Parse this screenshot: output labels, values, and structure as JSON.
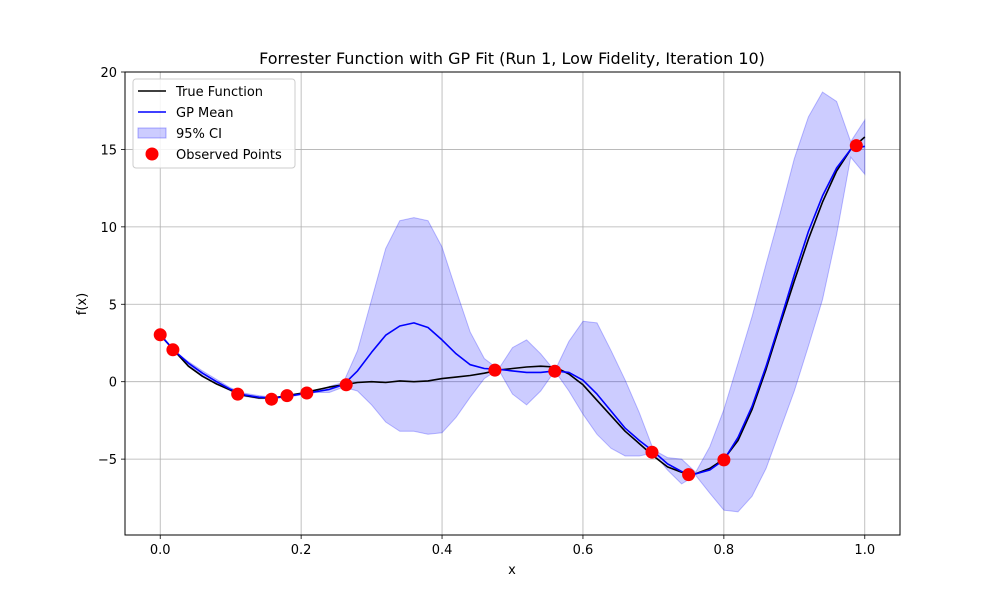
{
  "chart_data": {
    "type": "line",
    "title": "Forrester Function with GP Fit (Run 1, Low Fidelity, Iteration 10)",
    "xlabel": "x",
    "ylabel": "f(x)",
    "xlim": [
      -0.05,
      1.05
    ],
    "ylim": [
      -9.9,
      20
    ],
    "xticks": [
      0.0,
      0.2,
      0.4,
      0.6,
      0.8,
      1.0
    ],
    "xtick_labels": [
      "0.0",
      "0.2",
      "0.4",
      "0.6",
      "0.8",
      "1.0"
    ],
    "yticks": [
      -5,
      0,
      5,
      10,
      15,
      20
    ],
    "ytick_labels": [
      "−5",
      "0",
      "5",
      "10",
      "15",
      "20"
    ],
    "grid": true,
    "legend_position": "top-left",
    "colors": {
      "true_function": "#000000",
      "gp_mean": "#0000ff",
      "ci_fill": "#0000ff",
      "observed": "#ff0000",
      "grid": "#b0b0b0"
    },
    "series": [
      {
        "name": "True Function",
        "kind": "line",
        "x": [
          0.0,
          0.02,
          0.04,
          0.06,
          0.08,
          0.1,
          0.12,
          0.14,
          0.16,
          0.18,
          0.2,
          0.22,
          0.24,
          0.26,
          0.28,
          0.3,
          0.32,
          0.34,
          0.36,
          0.38,
          0.4,
          0.42,
          0.44,
          0.46,
          0.48,
          0.5,
          0.52,
          0.54,
          0.56,
          0.58,
          0.6,
          0.62,
          0.64,
          0.66,
          0.68,
          0.7,
          0.72,
          0.74,
          0.76,
          0.78,
          0.8,
          0.82,
          0.84,
          0.86,
          0.88,
          0.9,
          0.92,
          0.94,
          0.96,
          0.98,
          1.0
        ],
        "y": [
          3.03,
          2.0,
          1.0,
          0.35,
          -0.15,
          -0.55,
          -0.9,
          -1.05,
          -1.05,
          -0.9,
          -0.75,
          -0.55,
          -0.35,
          -0.2,
          -0.05,
          0.0,
          -0.05,
          0.05,
          0.0,
          0.05,
          0.2,
          0.3,
          0.4,
          0.55,
          0.75,
          0.85,
          0.95,
          1.0,
          0.95,
          0.5,
          -0.2,
          -1.2,
          -2.2,
          -3.2,
          -4.0,
          -4.8,
          -5.5,
          -5.85,
          -5.95,
          -5.6,
          -5.0,
          -3.8,
          -1.8,
          0.8,
          3.7,
          6.5,
          9.2,
          11.6,
          13.6,
          15.0,
          15.8
        ]
      },
      {
        "name": "GP Mean",
        "kind": "line",
        "x": [
          0.0,
          0.02,
          0.04,
          0.06,
          0.08,
          0.1,
          0.12,
          0.14,
          0.16,
          0.18,
          0.2,
          0.22,
          0.24,
          0.26,
          0.28,
          0.3,
          0.32,
          0.34,
          0.36,
          0.38,
          0.4,
          0.42,
          0.44,
          0.46,
          0.48,
          0.5,
          0.52,
          0.54,
          0.56,
          0.58,
          0.6,
          0.62,
          0.64,
          0.66,
          0.68,
          0.7,
          0.72,
          0.74,
          0.76,
          0.78,
          0.8,
          0.82,
          0.84,
          0.86,
          0.88,
          0.9,
          0.92,
          0.94,
          0.96,
          0.98,
          1.0
        ],
        "y": [
          3.03,
          2.0,
          1.2,
          0.55,
          0.0,
          -0.5,
          -0.85,
          -1.0,
          -1.05,
          -0.95,
          -0.8,
          -0.65,
          -0.5,
          -0.2,
          0.7,
          1.9,
          3.0,
          3.6,
          3.8,
          3.5,
          2.7,
          1.8,
          1.1,
          0.85,
          0.8,
          0.7,
          0.6,
          0.6,
          0.7,
          0.6,
          0.1,
          -0.8,
          -1.9,
          -3.0,
          -3.8,
          -4.5,
          -5.3,
          -5.8,
          -5.95,
          -5.7,
          -5.05,
          -3.6,
          -1.6,
          1.0,
          3.9,
          6.9,
          9.7,
          12.0,
          13.8,
          15.0,
          15.2
        ]
      },
      {
        "name": "95% CI",
        "kind": "band",
        "x": [
          0.0,
          0.02,
          0.04,
          0.06,
          0.08,
          0.1,
          0.12,
          0.14,
          0.16,
          0.18,
          0.2,
          0.22,
          0.24,
          0.26,
          0.28,
          0.3,
          0.32,
          0.34,
          0.36,
          0.38,
          0.4,
          0.42,
          0.44,
          0.46,
          0.48,
          0.5,
          0.52,
          0.54,
          0.56,
          0.58,
          0.6,
          0.62,
          0.64,
          0.66,
          0.68,
          0.7,
          0.72,
          0.74,
          0.76,
          0.78,
          0.8,
          0.82,
          0.84,
          0.86,
          0.88,
          0.9,
          0.92,
          0.94,
          0.96,
          0.98,
          1.0
        ],
        "lower": [
          3.03,
          2.0,
          1.1,
          0.4,
          -0.15,
          -0.6,
          -0.95,
          -1.1,
          -1.1,
          -1.0,
          -0.85,
          -0.7,
          -0.7,
          -0.35,
          -0.6,
          -1.5,
          -2.6,
          -3.2,
          -3.2,
          -3.4,
          -3.3,
          -2.3,
          -1.0,
          0.2,
          0.8,
          -0.8,
          -1.5,
          -0.6,
          0.7,
          -0.6,
          -2.1,
          -3.4,
          -4.3,
          -4.8,
          -4.8,
          -4.6,
          -5.7,
          -6.6,
          -6.05,
          -7.2,
          -8.3,
          -8.4,
          -7.4,
          -5.6,
          -3.1,
          -0.6,
          2.3,
          5.3,
          9.5,
          14.5,
          13.4
        ],
        "upper": [
          3.03,
          2.0,
          1.3,
          0.7,
          0.15,
          -0.4,
          -0.75,
          -0.9,
          -1.0,
          -0.9,
          -0.75,
          -0.6,
          -0.3,
          -0.05,
          2.0,
          5.3,
          8.6,
          10.4,
          10.6,
          10.4,
          8.7,
          5.9,
          3.2,
          1.5,
          0.8,
          2.2,
          2.7,
          1.8,
          0.7,
          2.6,
          3.9,
          3.8,
          2.0,
          0.1,
          -2.0,
          -4.4,
          -4.9,
          -5.0,
          -5.85,
          -4.2,
          -1.8,
          1.2,
          4.2,
          7.6,
          10.9,
          14.4,
          17.1,
          18.7,
          18.1,
          15.5,
          16.9
        ]
      },
      {
        "name": "Observed Points",
        "kind": "scatter",
        "x": [
          0.0,
          0.018,
          0.11,
          0.158,
          0.18,
          0.208,
          0.264,
          0.475,
          0.56,
          0.698,
          0.75,
          0.8,
          0.988
        ],
        "y": [
          3.03,
          2.06,
          -0.8,
          -1.13,
          -0.9,
          -0.73,
          -0.2,
          0.75,
          0.68,
          -4.55,
          -6.0,
          -5.05,
          15.25
        ]
      }
    ]
  }
}
